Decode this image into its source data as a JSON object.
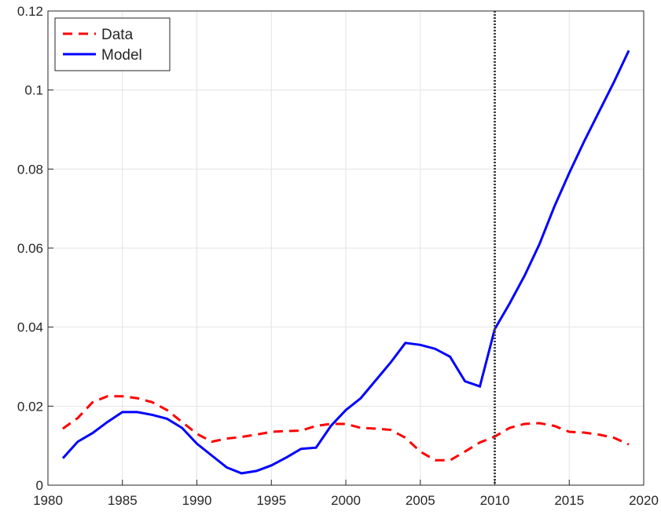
{
  "chart_data": {
    "type": "line",
    "x": [
      1981,
      1982,
      1983,
      1984,
      1985,
      1986,
      1987,
      1988,
      1989,
      1990,
      1991,
      1992,
      1993,
      1994,
      1995,
      1996,
      1997,
      1998,
      1999,
      2000,
      2001,
      2002,
      2003,
      2004,
      2005,
      2006,
      2007,
      2008,
      2009,
      2010,
      2011,
      2012,
      2013,
      2014,
      2015,
      2016,
      2017,
      2018,
      2019
    ],
    "series": [
      {
        "name": "Data",
        "color": "#ff0000",
        "dashed": true,
        "values": [
          0.0143,
          0.017,
          0.021,
          0.0225,
          0.0225,
          0.022,
          0.021,
          0.019,
          0.016,
          0.013,
          0.011,
          0.0118,
          0.0122,
          0.0128,
          0.0135,
          0.0137,
          0.0138,
          0.015,
          0.0155,
          0.0155,
          0.0145,
          0.0143,
          0.014,
          0.012,
          0.0085,
          0.0063,
          0.0063,
          0.0085,
          0.0108,
          0.0123,
          0.0145,
          0.0155,
          0.0157,
          0.015,
          0.0135,
          0.0133,
          0.0128,
          0.012,
          0.0103
        ]
      },
      {
        "name": "Model",
        "color": "#0000ff",
        "dashed": false,
        "values": [
          0.0068,
          0.011,
          0.0132,
          0.016,
          0.0185,
          0.0185,
          0.0178,
          0.0168,
          0.0145,
          0.0105,
          0.0075,
          0.0045,
          0.003,
          0.0036,
          0.005,
          0.007,
          0.0092,
          0.0095,
          0.015,
          0.019,
          0.022,
          0.0265,
          0.031,
          0.036,
          0.0355,
          0.0345,
          0.0325,
          0.0263,
          0.025,
          0.0395,
          0.046,
          0.053,
          0.061,
          0.0705,
          0.079,
          0.087,
          0.0945,
          0.102,
          0.11
        ]
      }
    ],
    "vline": 2010,
    "xlim": [
      1980,
      2020
    ],
    "xticks": [
      1980,
      1985,
      1990,
      1995,
      2000,
      2005,
      2010,
      2015,
      2020
    ],
    "ylim": [
      0,
      0.12
    ],
    "yticks": [
      0,
      0.02,
      0.04,
      0.06,
      0.08,
      0.1,
      0.12
    ],
    "grid": true,
    "legend": "northwest"
  }
}
